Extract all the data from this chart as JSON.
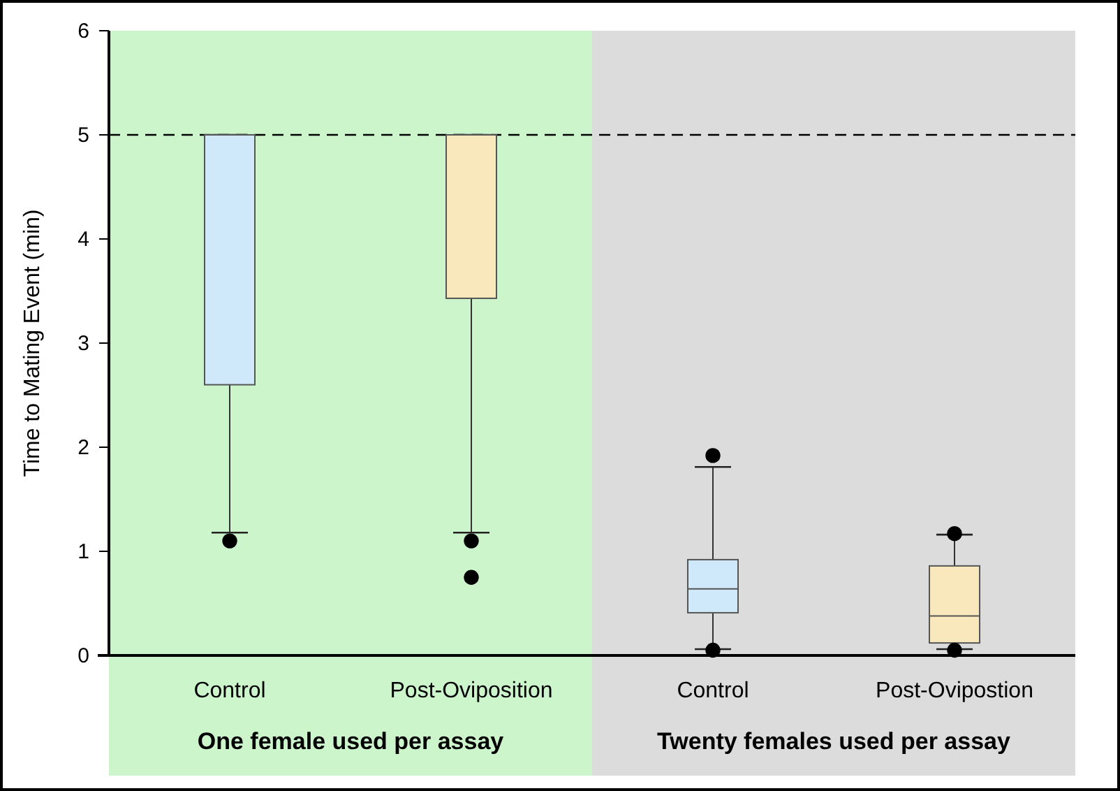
{
  "chart_data": {
    "type": "box",
    "ylabel": "Time to Mating Event (min)",
    "categories": [
      "Control",
      "Post-Oviposition",
      "Control",
      "Post-Ovipostion"
    ],
    "colors": [
      "#cfe9fb",
      "#f8e8bb",
      "#cfe9fb",
      "#f8e8bb"
    ],
    "boxes": [
      {
        "low": 1.18,
        "q1": 2.6,
        "median": 5,
        "q3": 5,
        "high": 5,
        "outliers": [
          1.1
        ]
      },
      {
        "low": 1.18,
        "q1": 3.43,
        "median": 5,
        "q3": 5,
        "high": 5,
        "outliers": [
          1.1,
          0.75
        ]
      },
      {
        "low": 0.06,
        "q1": 0.41,
        "median": 0.64,
        "q3": 0.92,
        "high": 1.81,
        "outliers": [
          1.92,
          0.05
        ]
      },
      {
        "low": 0.06,
        "q1": 0.12,
        "median": 0.38,
        "q3": 0.86,
        "high": 1.16,
        "outliers": [
          1.17,
          0.05
        ]
      }
    ],
    "ylim": [
      0,
      6
    ],
    "yticks": [
      0,
      1,
      2,
      3,
      4,
      5,
      6
    ],
    "grid": false,
    "marker": "circle",
    "ref_lines": [
      {
        "axis": "y",
        "value": 5,
        "line_style": "dashed",
        "color": "#000000"
      }
    ],
    "annotations": [
      "One female used per assay",
      "Twenty females used per assay"
    ]
  }
}
